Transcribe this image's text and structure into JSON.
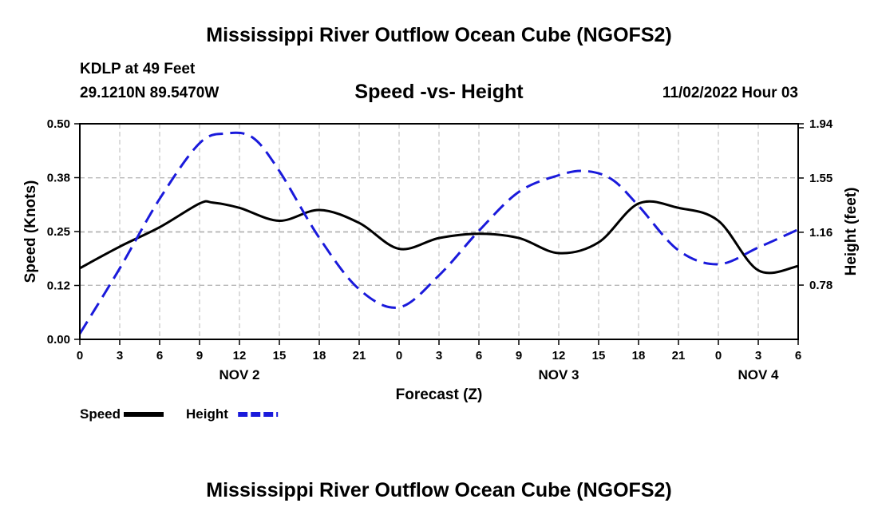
{
  "title": "Mississippi River Outflow Ocean Cube (NGOFS2)",
  "bottom_title": "Mississippi River Outflow Ocean Cube (NGOFS2)",
  "station": "KDLP at 49 Feet",
  "coordinates": "29.1210N  89.5470W",
  "subtitle": "Speed -vs- Height",
  "datetime": "11/02/2022 Hour 03",
  "chart_data": {
    "type": "line",
    "title": "Speed -vs- Height",
    "xlabel": "Forecast (Z)",
    "ylabel": "Speed (Knots)",
    "y2label": "Height (feet)",
    "x_range": [
      0,
      54
    ],
    "ylim": [
      0.0,
      0.5
    ],
    "y2lim": [
      0.39,
      1.94
    ],
    "x_ticks": [
      0,
      3,
      6,
      9,
      12,
      15,
      18,
      21,
      24,
      27,
      30,
      33,
      36,
      39,
      42,
      45,
      48,
      51,
      54
    ],
    "x_tick_labels": [
      "0",
      "3",
      "6",
      "9",
      "12",
      "15",
      "18",
      "21",
      "0",
      "3",
      "6",
      "9",
      "12",
      "15",
      "18",
      "21",
      "0",
      "3",
      "6"
    ],
    "day_labels": [
      {
        "x": 12,
        "label": "NOV 2"
      },
      {
        "x": 36,
        "label": "NOV 3"
      },
      {
        "x": 51,
        "label": "NOV 4"
      }
    ],
    "y_ticks": [
      0.0,
      0.125,
      0.25,
      0.375,
      0.5
    ],
    "y_tick_labels": [
      "0.00",
      "0.12",
      "0.25",
      "0.38",
      "0.50"
    ],
    "y2_ticks": [
      0.78,
      1.16,
      1.55,
      1.94
    ],
    "y2_tick_labels": [
      "0.78",
      "1.16",
      "1.55",
      "1.94"
    ],
    "grid": true,
    "series": [
      {
        "name": "Speed",
        "axis": "left",
        "color": "#000000",
        "dash": "solid",
        "x": [
          0,
          3,
          6,
          9,
          10,
          12,
          15,
          18,
          21,
          24,
          27,
          30,
          33,
          36,
          39,
          42,
          45,
          48,
          51,
          54
        ],
        "values": [
          0.165,
          0.215,
          0.26,
          0.315,
          0.317,
          0.305,
          0.275,
          0.3,
          0.27,
          0.21,
          0.235,
          0.245,
          0.235,
          0.2,
          0.225,
          0.315,
          0.305,
          0.275,
          0.16,
          0.17
        ]
      },
      {
        "name": "Height",
        "axis": "right",
        "color": "#1a1adb",
        "dash": "dashed",
        "x": [
          0,
          3,
          6,
          9,
          11,
          13,
          15,
          18,
          21,
          24,
          27,
          30,
          33,
          36,
          38,
          40,
          42,
          45,
          48,
          51,
          54
        ],
        "values": [
          0.43,
          0.9,
          1.4,
          1.8,
          1.87,
          1.84,
          1.6,
          1.12,
          0.75,
          0.62,
          0.85,
          1.17,
          1.45,
          1.57,
          1.6,
          1.54,
          1.35,
          1.03,
          0.93,
          1.05,
          1.18
        ]
      }
    ],
    "legend": [
      {
        "label": "Speed",
        "color": "#000000",
        "dash": "solid"
      },
      {
        "label": "Height",
        "color": "#1a1adb",
        "dash": "dashed"
      }
    ],
    "legend_position": "bottom-left"
  }
}
